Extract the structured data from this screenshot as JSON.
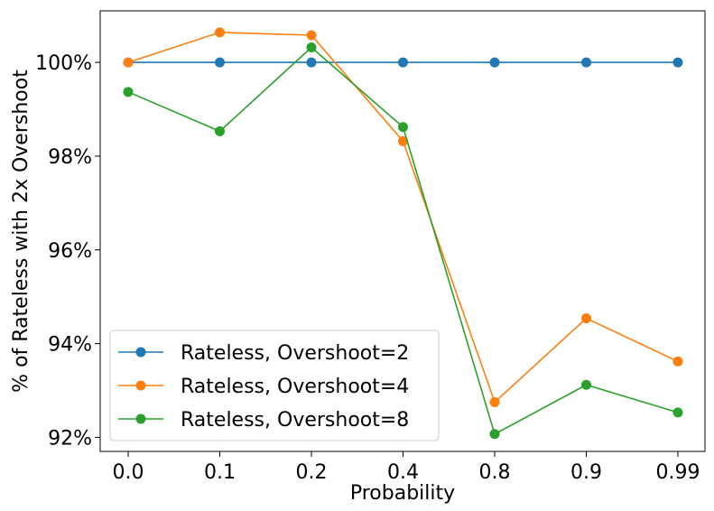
{
  "chart_data": {
    "type": "line",
    "categories": [
      "0.0",
      "0.1",
      "0.2",
      "0.4",
      "0.8",
      "0.9",
      "0.99"
    ],
    "xlabel": "Probability",
    "ylabel": "% of Rateless with 2x Overshoot",
    "ylim": [
      91.7,
      101.1
    ],
    "yticks": [
      92,
      94,
      96,
      98,
      100
    ],
    "ytick_labels": [
      "92%",
      "94%",
      "96%",
      "98%",
      "100%"
    ],
    "grid": false,
    "legend_position": "lower-left",
    "series": [
      {
        "name": "Rateless, Overshoot=2",
        "color": "#1f77b4",
        "values": [
          100,
          100,
          100,
          100,
          100,
          100,
          100
        ]
      },
      {
        "name": "Rateless, Overshoot=4",
        "color": "#ff7f0e",
        "values": [
          100,
          100.64,
          100.58,
          98.32,
          92.75,
          94.54,
          93.62
        ]
      },
      {
        "name": "Rateless, Overshoot=8",
        "color": "#2ca02c",
        "values": [
          99.37,
          98.53,
          100.32,
          98.62,
          92.07,
          93.12,
          92.53
        ]
      }
    ]
  }
}
